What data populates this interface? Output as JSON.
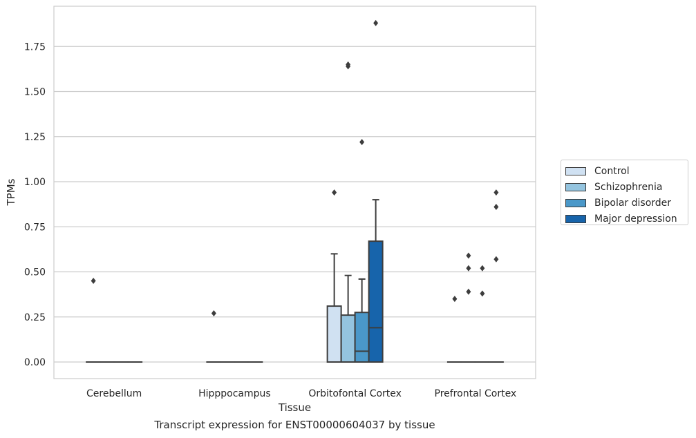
{
  "chart_data": {
    "type": "box",
    "xlabel": "Tissue",
    "ylabel": "TPMs",
    "caption": "Transcript expression for ENST00000604037 by tissue",
    "categories": [
      "Cerebellum",
      "Hipppocampus",
      "Orbitofontal Cortex",
      "Prefrontal Cortex"
    ],
    "ylim": [
      -0.09,
      1.95
    ],
    "yticks": [
      "0.00",
      "0.25",
      "0.50",
      "0.75",
      "1.00",
      "1.25",
      "1.50",
      "1.75"
    ],
    "ytick_values": [
      0,
      0.25,
      0.5,
      0.75,
      1.0,
      1.25,
      1.5,
      1.75
    ],
    "grid": "horizontal",
    "legend_position": "right",
    "series": [
      {
        "name": "Control",
        "color": "#d0e1f2",
        "boxes": [
          {
            "q1": 0,
            "median": 0,
            "q3": 0,
            "whisker_low": 0,
            "whisker_high": 0,
            "outliers": [
              0.45
            ]
          },
          {
            "q1": 0,
            "median": 0,
            "q3": 0,
            "whisker_low": 0,
            "whisker_high": 0,
            "outliers": [
              0.27
            ]
          },
          {
            "q1": 0,
            "median": 0,
            "q3": 0.31,
            "whisker_low": 0,
            "whisker_high": 0.6,
            "outliers": [
              0.94
            ]
          },
          {
            "q1": 0,
            "median": 0,
            "q3": 0,
            "whisker_low": 0,
            "whisker_high": 0,
            "outliers": [
              0.35
            ]
          }
        ]
      },
      {
        "name": "Schizophrenia",
        "color": "#94c4df",
        "boxes": [
          {
            "q1": 0,
            "median": 0,
            "q3": 0,
            "whisker_low": 0,
            "whisker_high": 0,
            "outliers": []
          },
          {
            "q1": 0,
            "median": 0,
            "q3": 0,
            "whisker_low": 0,
            "whisker_high": 0,
            "outliers": []
          },
          {
            "q1": 0,
            "median": 0,
            "q3": 0.26,
            "whisker_low": 0,
            "whisker_high": 0.48,
            "outliers": [
              1.64,
              1.65
            ]
          },
          {
            "q1": 0,
            "median": 0,
            "q3": 0,
            "whisker_low": 0,
            "whisker_high": 0,
            "outliers": [
              0.39,
              0.52,
              0.59
            ]
          }
        ]
      },
      {
        "name": "Bipolar disorder",
        "color": "#4a98c9",
        "boxes": [
          {
            "q1": 0,
            "median": 0,
            "q3": 0,
            "whisker_low": 0,
            "whisker_high": 0,
            "outliers": []
          },
          {
            "q1": 0,
            "median": 0,
            "q3": 0,
            "whisker_low": 0,
            "whisker_high": 0,
            "outliers": []
          },
          {
            "q1": 0,
            "median": 0.06,
            "q3": 0.275,
            "whisker_low": 0,
            "whisker_high": 0.46,
            "outliers": [
              1.22
            ]
          },
          {
            "q1": 0,
            "median": 0,
            "q3": 0,
            "whisker_low": 0,
            "whisker_high": 0,
            "outliers": [
              0.38,
              0.52
            ]
          }
        ]
      },
      {
        "name": "Major depression",
        "color": "#1764ab",
        "boxes": [
          {
            "q1": 0,
            "median": 0,
            "q3": 0,
            "whisker_low": 0,
            "whisker_high": 0,
            "outliers": []
          },
          {
            "q1": 0,
            "median": 0,
            "q3": 0,
            "whisker_low": 0,
            "whisker_high": 0,
            "outliers": []
          },
          {
            "q1": 0,
            "median": 0.19,
            "q3": 0.67,
            "whisker_low": 0,
            "whisker_high": 0.9,
            "outliers": [
              1.88
            ]
          },
          {
            "q1": 0,
            "median": 0,
            "q3": 0,
            "whisker_low": 0,
            "whisker_high": 0,
            "outliers": [
              0.57,
              0.86,
              0.94
            ]
          }
        ]
      }
    ]
  }
}
